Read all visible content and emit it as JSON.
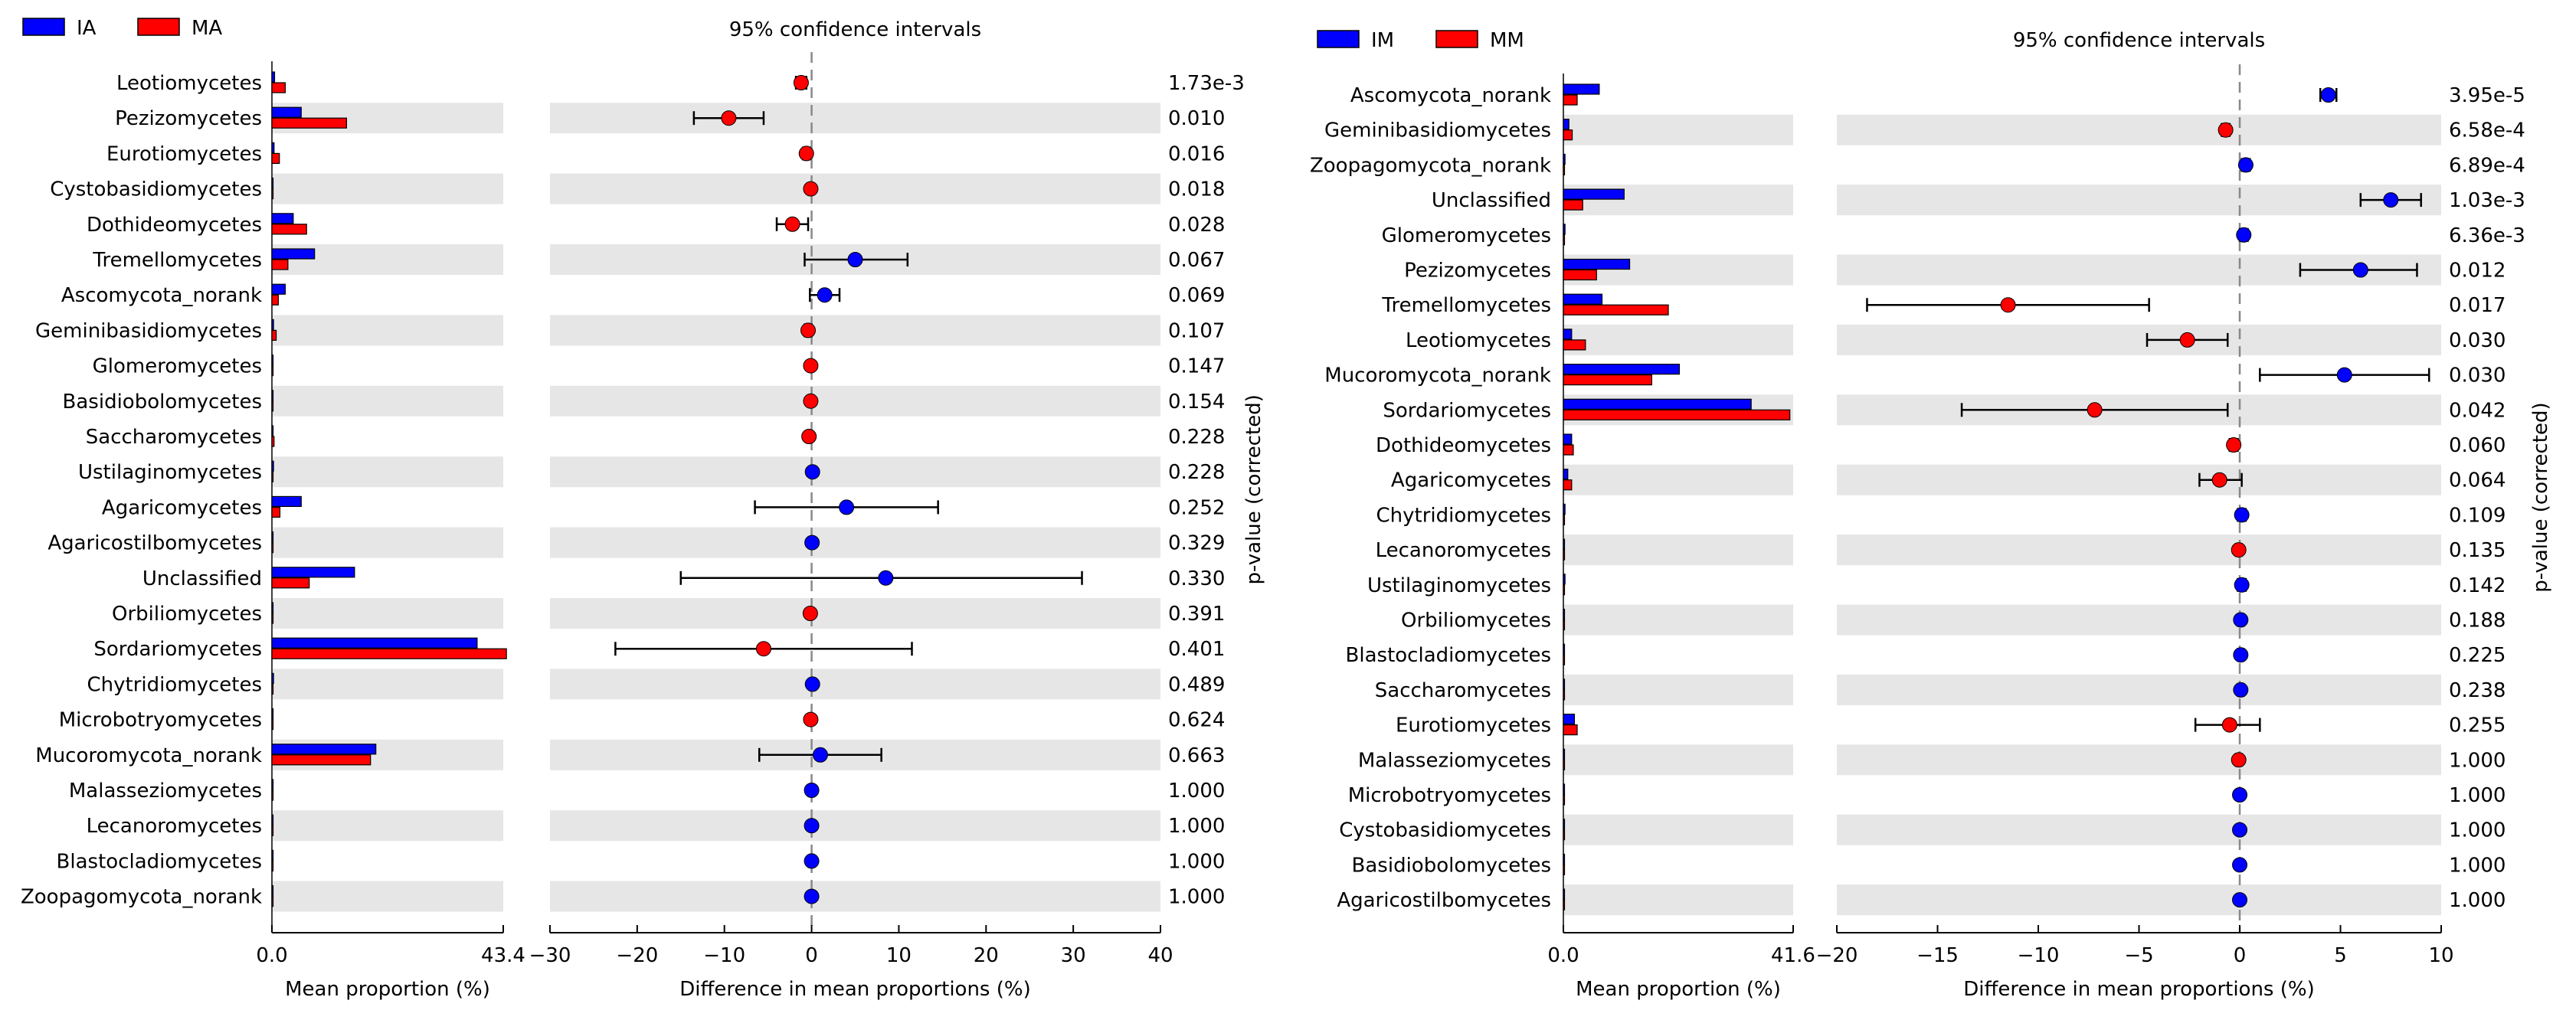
{
  "chart_data": [
    {
      "type": "bar",
      "ci_title": "95% confidence intervals",
      "left_xlabel": "Mean proportion (%)",
      "right_xlabel": "Difference in mean proportions (%)",
      "pvalue_label": "p-value (corrected)",
      "left_xlim": [
        0,
        43.4
      ],
      "left_ticks": [
        "0.0",
        "43.4"
      ],
      "diff_xlim": [
        -30,
        40
      ],
      "diff_ticks": [
        -30,
        -20,
        -10,
        0,
        10,
        20,
        30,
        40
      ],
      "series": [
        {
          "name": "IA",
          "color": "#0000ff"
        },
        {
          "name": "MA",
          "color": "#ff0000"
        }
      ],
      "categories": [
        "Leotiomycetes",
        "Pezizomycetes",
        "Eurotiomycetes",
        "Cystobasidiomycetes",
        "Dothideomycetes",
        "Tremellomycetes",
        "Ascomycota_norank",
        "Geminibasidiomycetes",
        "Glomeromycetes",
        "Basidiobolomycetes",
        "Saccharomycetes",
        "Ustilaginomycetes",
        "Agaricomycetes",
        "Agaricostilbomycetes",
        "Unclassified",
        "Orbiliomycetes",
        "Sordariomycetes",
        "Chytridiomycetes",
        "Microbotryomycetes",
        "Mucoromycota_norank",
        "Malasseziomycetes",
        "Lecanoromycetes",
        "Blastocladiomycetes",
        "Zoopagomycota_norank"
      ],
      "values_g1": [
        0.5,
        5.5,
        0.4,
        0.05,
        4.0,
        8.0,
        2.5,
        0.3,
        0.05,
        0.05,
        0.1,
        0.3,
        5.5,
        0.1,
        15.5,
        0.05,
        38.5,
        0.3,
        0.05,
        19.5,
        0.2,
        0.05,
        0.05,
        0.05
      ],
      "values_g2": [
        2.5,
        14.0,
        1.4,
        0.15,
        6.5,
        3.0,
        1.2,
        0.8,
        0.15,
        0.15,
        0.4,
        0.15,
        1.5,
        0.05,
        7.0,
        0.2,
        44.0,
        0.2,
        0.15,
        18.5,
        0.2,
        0.05,
        0.05,
        0.05
      ],
      "diff": [
        -1.2,
        -9.5,
        -0.6,
        -0.1,
        -2.2,
        5.0,
        1.5,
        -0.4,
        -0.1,
        -0.1,
        -0.3,
        0.1,
        4.0,
        0.05,
        8.5,
        -0.15,
        -5.5,
        0.1,
        -0.1,
        1.0,
        0.0,
        0.0,
        0.0,
        0.0
      ],
      "ci_low": [
        -1.8,
        -13.5,
        -1.0,
        -0.3,
        -4.0,
        -0.8,
        -0.2,
        -0.8,
        -0.3,
        -0.3,
        -0.6,
        -0.1,
        -6.5,
        -0.1,
        -15.0,
        -0.3,
        -22.5,
        -0.2,
        -0.3,
        -6.0,
        -0.1,
        -0.1,
        -0.1,
        -0.1
      ],
      "ci_high": [
        -0.6,
        -5.5,
        -0.2,
        0.1,
        -0.4,
        11.0,
        3.2,
        0.0,
        0.1,
        0.1,
        0.0,
        0.3,
        14.5,
        0.2,
        31.0,
        0.0,
        11.5,
        0.4,
        0.1,
        8.0,
        0.1,
        0.1,
        0.1,
        0.1
      ],
      "pvalues": [
        "1.73e-3",
        "0.010",
        "0.016",
        "0.018",
        "0.028",
        "0.067",
        "0.069",
        "0.107",
        "0.147",
        "0.154",
        "0.228",
        "0.228",
        "0.252",
        "0.329",
        "0.330",
        "0.391",
        "0.401",
        "0.489",
        "0.624",
        "0.663",
        "1.000",
        "1.000",
        "1.000",
        "1.000"
      ],
      "grid": false
    },
    {
      "type": "bar",
      "ci_title": "95% confidence intervals",
      "left_xlabel": "Mean proportion (%)",
      "right_xlabel": "Difference in mean proportions (%)",
      "pvalue_label": "p-value (corrected)",
      "left_xlim": [
        0,
        41.6
      ],
      "left_ticks": [
        "0.0",
        "41.6"
      ],
      "diff_xlim": [
        -20,
        10
      ],
      "diff_ticks": [
        -20,
        -15,
        -10,
        -5,
        0,
        5,
        10
      ],
      "series": [
        {
          "name": "IM",
          "color": "#0000ff"
        },
        {
          "name": "MM",
          "color": "#ff0000"
        }
      ],
      "categories": [
        "Ascomycota_norank",
        "Geminibasidiomycetes",
        "Zoopagomycota_norank",
        "Unclassified",
        "Glomeromycetes",
        "Pezizomycetes",
        "Tremellomycetes",
        "Leotiomycetes",
        "Mucoromycota_norank",
        "Sordariomycetes",
        "Dothideomycetes",
        "Agaricomycetes",
        "Chytridiomycetes",
        "Lecanoromycetes",
        "Ustilaginomycetes",
        "Orbiliomycetes",
        "Blastocladiomycetes",
        "Saccharomycetes",
        "Eurotiomycetes",
        "Malasseziomycetes",
        "Microbotryomycetes",
        "Cystobasidiomycetes",
        "Basidiobolomycetes",
        "Agaricostilbomycetes"
      ],
      "values_g1": [
        6.5,
        1.0,
        0.3,
        11.0,
        0.3,
        12.0,
        7.0,
        1.5,
        21.0,
        34.0,
        1.5,
        0.8,
        0.3,
        0.1,
        0.3,
        0.2,
        0.1,
        0.2,
        2.0,
        0.1,
        0.05,
        0.05,
        0.05,
        0.05
      ],
      "values_g2": [
        2.5,
        1.6,
        0.05,
        3.5,
        0.05,
        6.0,
        19.0,
        4.0,
        16.0,
        41.0,
        1.8,
        1.5,
        0.05,
        0.2,
        0.1,
        0.1,
        0.05,
        0.1,
        2.5,
        0.1,
        0.05,
        0.05,
        0.05,
        0.05
      ],
      "diff": [
        4.4,
        -0.7,
        0.3,
        7.5,
        0.2,
        6.0,
        -11.5,
        -2.6,
        5.2,
        -7.2,
        -0.3,
        -1.0,
        0.1,
        -0.05,
        0.1,
        0.05,
        0.05,
        0.05,
        -0.5,
        -0.05,
        0.0,
        0.0,
        0.0,
        0.0
      ],
      "ci_low": [
        4.0,
        -0.9,
        0.1,
        6.0,
        0.0,
        3.0,
        -18.5,
        -4.6,
        1.0,
        -13.8,
        -0.5,
        -2.0,
        -0.1,
        -0.2,
        -0.1,
        -0.1,
        -0.1,
        -0.1,
        -2.2,
        -0.2,
        -0.1,
        -0.1,
        -0.1,
        -0.1
      ],
      "ci_high": [
        4.8,
        -0.5,
        0.5,
        9.0,
        0.4,
        8.8,
        -4.5,
        -0.6,
        9.4,
        -0.6,
        -0.1,
        0.1,
        0.3,
        0.1,
        0.3,
        0.2,
        0.2,
        0.2,
        1.0,
        0.1,
        0.1,
        0.1,
        0.1,
        0.1
      ],
      "pvalues": [
        "3.95e-5",
        "6.58e-4",
        "6.89e-4",
        "1.03e-3",
        "6.36e-3",
        "0.012",
        "0.017",
        "0.030",
        "0.030",
        "0.042",
        "0.060",
        "0.064",
        "0.109",
        "0.135",
        "0.142",
        "0.188",
        "0.225",
        "0.238",
        "0.255",
        "1.000",
        "1.000",
        "1.000",
        "1.000",
        "1.000"
      ],
      "grid": false
    }
  ]
}
